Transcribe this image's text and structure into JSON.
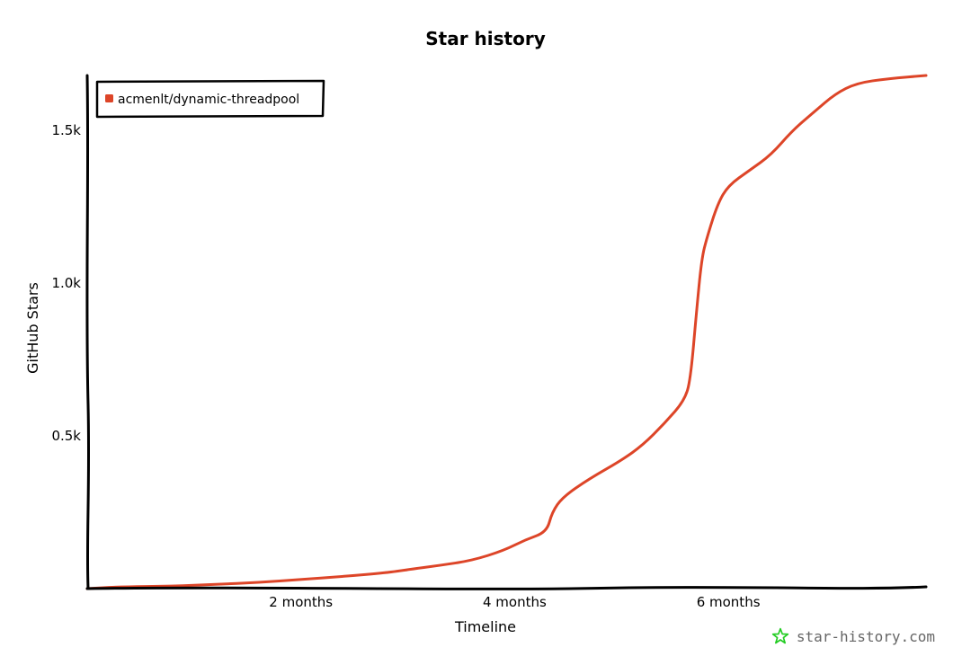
{
  "chart_data": {
    "type": "line",
    "title": "Star history",
    "xlabel": "Timeline",
    "ylabel": "GitHub Stars",
    "x_ticks": [
      {
        "value": 2,
        "label": "2 months"
      },
      {
        "value": 4,
        "label": "4 months"
      },
      {
        "value": 6,
        "label": "6 months"
      }
    ],
    "y_ticks": [
      {
        "value": 500,
        "label": "0.5k"
      },
      {
        "value": 1000,
        "label": "1.0k"
      },
      {
        "value": 1500,
        "label": "1.5k"
      }
    ],
    "xlim": [
      0,
      7.85
    ],
    "ylim": [
      0,
      1680
    ],
    "grid": false,
    "legend_position": "top-left",
    "series": [
      {
        "name": "acmenlt/dynamic-threadpool",
        "color": "#dd4528",
        "points": [
          [
            0,
            0
          ],
          [
            0.3,
            6
          ],
          [
            0.8,
            8
          ],
          [
            1.2,
            14
          ],
          [
            1.6,
            20
          ],
          [
            2.0,
            30
          ],
          [
            2.4,
            40
          ],
          [
            2.8,
            52
          ],
          [
            3.0,
            62
          ],
          [
            3.3,
            76
          ],
          [
            3.6,
            92
          ],
          [
            3.9,
            125
          ],
          [
            4.1,
            160
          ],
          [
            4.3,
            185
          ],
          [
            4.35,
            250
          ],
          [
            4.45,
            300
          ],
          [
            4.7,
            360
          ],
          [
            5.0,
            420
          ],
          [
            5.2,
            470
          ],
          [
            5.4,
            540
          ],
          [
            5.6,
            620
          ],
          [
            5.65,
            700
          ],
          [
            5.7,
            900
          ],
          [
            5.75,
            1080
          ],
          [
            5.8,
            1150
          ],
          [
            5.9,
            1260
          ],
          [
            6.0,
            1320
          ],
          [
            6.2,
            1370
          ],
          [
            6.4,
            1420
          ],
          [
            6.6,
            1500
          ],
          [
            6.8,
            1560
          ],
          [
            7.0,
            1620
          ],
          [
            7.2,
            1655
          ],
          [
            7.5,
            1670
          ],
          [
            7.85,
            1680
          ]
        ]
      }
    ]
  },
  "watermark": {
    "text": "star-history.com",
    "icon": "star-icon",
    "icon_color": "#22cc22"
  }
}
